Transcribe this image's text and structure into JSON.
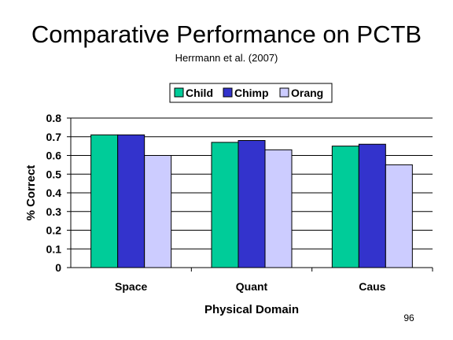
{
  "slide": {
    "title": "Comparative Performance on PCTB",
    "subtitle": "Herrmann et al. (2007)",
    "page_number": "96"
  },
  "chart_data": {
    "type": "bar",
    "title": "",
    "xlabel": "Physical Domain",
    "ylabel": "% Correct",
    "categories": [
      "Space",
      "Quant",
      "Caus"
    ],
    "series": [
      {
        "name": "Child",
        "values": [
          0.71,
          0.67,
          0.65
        ],
        "color": "#00CC99"
      },
      {
        "name": "Chimp",
        "values": [
          0.71,
          0.68,
          0.66
        ],
        "color": "#3333CC"
      },
      {
        "name": "Orang",
        "values": [
          0.6,
          0.63,
          0.55
        ],
        "color": "#CCCCFF"
      }
    ],
    "ylim": [
      0,
      0.8
    ],
    "yticks": [
      "0",
      "0.1",
      "0.2",
      "0.3",
      "0.4",
      "0.5",
      "0.6",
      "0.7",
      "0.8"
    ],
    "grid": true,
    "legend_position": "top"
  }
}
